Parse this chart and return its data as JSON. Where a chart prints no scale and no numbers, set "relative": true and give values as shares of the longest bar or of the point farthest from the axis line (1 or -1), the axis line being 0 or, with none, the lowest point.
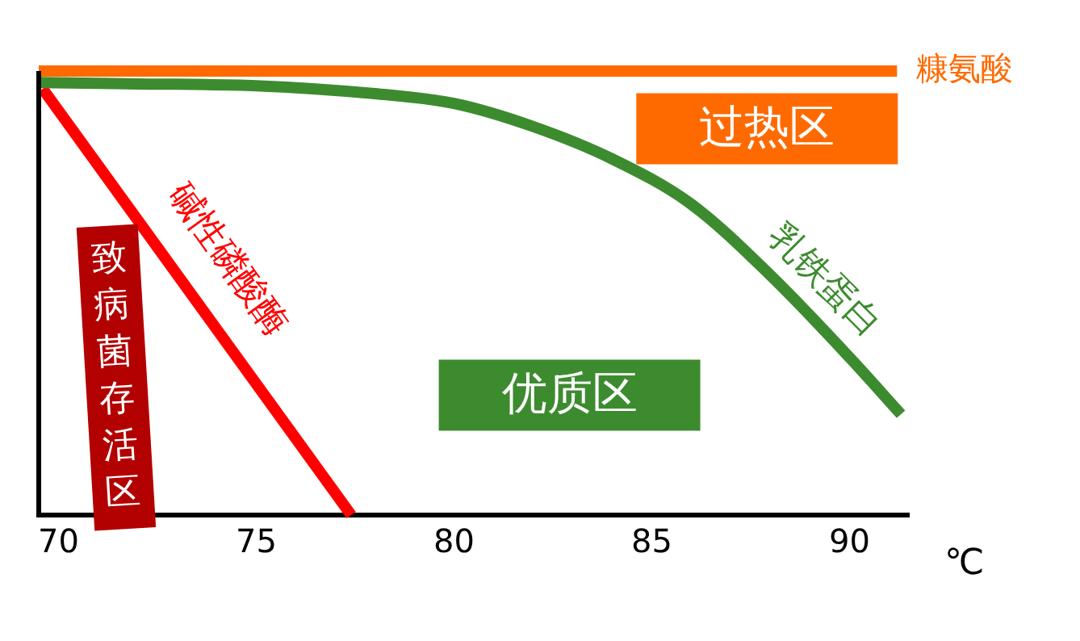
{
  "chart_data": {
    "type": "line",
    "xlabel": "℃",
    "relative": true,
    "xlim": [
      69.5,
      91.5
    ],
    "xticks": [
      70,
      75,
      80,
      85,
      90
    ],
    "grid": false,
    "legend": false,
    "marker": "none",
    "line_style": "solid",
    "series": [
      {
        "name": "糠氨酸",
        "color": "#ff6a00",
        "x": [
          69.5,
          91.2
        ],
        "values": [
          1,
          1
        ]
      },
      {
        "name": "乳铁蛋白",
        "color": "#3d8b2f",
        "x": [
          69.5,
          72,
          75,
          78,
          80,
          82,
          84,
          86,
          88,
          90,
          91.3
        ],
        "values": [
          0.974,
          0.971,
          0.967,
          0.949,
          0.927,
          0.875,
          0.802,
          0.7,
          0.54,
          0.355,
          0.227
        ]
      },
      {
        "name": "碱性磷酸酶",
        "color": "#ff0000",
        "x": [
          69.6,
          77.4
        ],
        "values": [
          0.96,
          0
        ]
      }
    ],
    "annotations": [
      "过热区",
      "优质区",
      "致病菌存活区"
    ]
  }
}
